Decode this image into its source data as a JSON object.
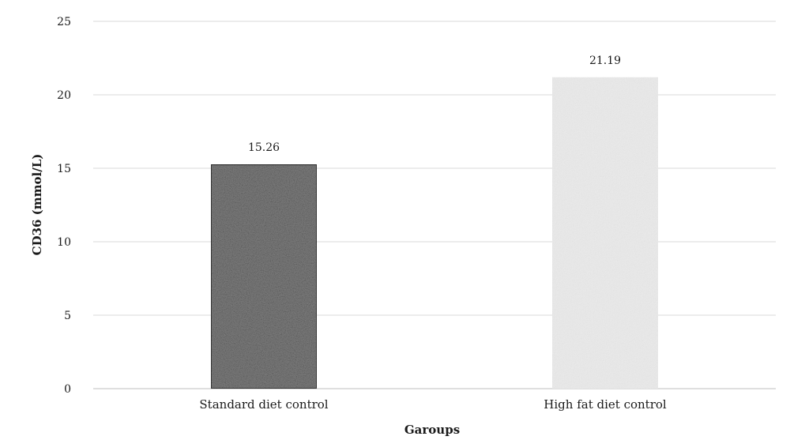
{
  "chart_data": {
    "type": "bar",
    "categories": [
      "Standard diet control",
      "High fat diet control"
    ],
    "values": [
      15.26,
      21.19
    ],
    "value_labels": [
      "15.26",
      "21.19"
    ],
    "title": "",
    "xlabel": "Garoups",
    "ylabel": "CD36 (mmol/L)",
    "ylim": [
      0,
      25
    ],
    "yticks": [
      0,
      5,
      10,
      15,
      20,
      25
    ],
    "grid": true,
    "legend": "none",
    "colors": {
      "bar_dark": "#7d7d7d",
      "bar_light": "#ececec",
      "grid": "#d9d9d9"
    }
  }
}
